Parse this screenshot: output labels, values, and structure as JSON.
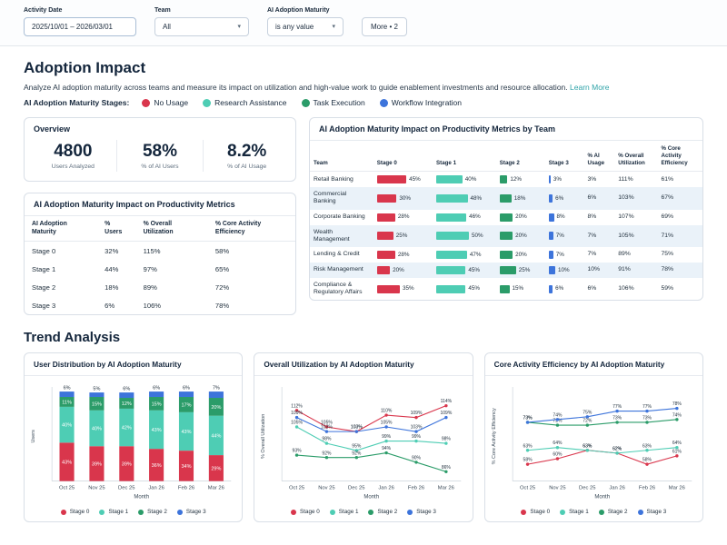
{
  "stage_colors": {
    "stage0": "#d9364c",
    "stage1": "#4ecdb4",
    "stage2": "#2b9c69",
    "stage3": "#3d74db"
  },
  "filters": {
    "activity_date": {
      "label": "Activity Date",
      "value": "2025/10/01 – 2026/03/01"
    },
    "team": {
      "label": "Team",
      "value": "All"
    },
    "maturity": {
      "label": "AI Adoption Maturity",
      "value": "is any value"
    },
    "more": {
      "label": "More • 2"
    }
  },
  "adoption_impact": {
    "title": "Adoption Impact",
    "description": "Analyze AI adoption maturity across teams and measure its impact on utilization and high-value work to guide enablement investments and resource allocation.",
    "learn_more": "Learn More",
    "legend_title": "AI Adoption Maturity Stages:",
    "legend": [
      {
        "label": "No Usage",
        "color": "#d9364c"
      },
      {
        "label": "Research Assistance",
        "color": "#4ecdb4"
      },
      {
        "label": "Task Execution",
        "color": "#2b9c69"
      },
      {
        "label": "Workflow Integration",
        "color": "#3d74db"
      }
    ]
  },
  "overview": {
    "title": "Overview",
    "stats": [
      {
        "value": "4800",
        "label": "Users Analyzed"
      },
      {
        "value": "58%",
        "label": "% of AI Users"
      },
      {
        "value": "8.2%",
        "label": "% of AI Usage"
      }
    ]
  },
  "metrics_table": {
    "title": "AI Adoption Maturity Impact on Productivity Metrics",
    "columns": [
      "AI Adoption Maturity",
      "% Users",
      "% Overall Utilization",
      "% Core Activity Efficiency"
    ],
    "rows": [
      [
        "Stage 0",
        "32%",
        "115%",
        "58%"
      ],
      [
        "Stage 1",
        "44%",
        "97%",
        "65%"
      ],
      [
        "Stage 2",
        "18%",
        "89%",
        "72%"
      ],
      [
        "Stage 3",
        "6%",
        "106%",
        "78%"
      ]
    ]
  },
  "team_table": {
    "title": "AI Adoption Maturity Impact on Productivity Metrics by Team",
    "columns": [
      "Team",
      "Stage 0",
      "Stage 1",
      "Stage 2",
      "Stage 3",
      "% AI Usage",
      "% Overall Utilization",
      "% Core Activity Efficiency"
    ],
    "rows": [
      {
        "team": "Retail Banking",
        "stages": [
          45,
          40,
          12,
          3
        ],
        "ai_usage": "3%",
        "utilization": "111%",
        "efficiency": "61%"
      },
      {
        "team": "Commercial Banking",
        "stages": [
          30,
          48,
          18,
          6
        ],
        "ai_usage": "6%",
        "utilization": "103%",
        "efficiency": "67%"
      },
      {
        "team": "Corporate Banking",
        "stages": [
          28,
          46,
          20,
          8
        ],
        "ai_usage": "8%",
        "utilization": "107%",
        "efficiency": "69%"
      },
      {
        "team": "Wealth Management",
        "stages": [
          25,
          50,
          20,
          7
        ],
        "ai_usage": "7%",
        "utilization": "105%",
        "efficiency": "71%"
      },
      {
        "team": "Lending & Credit",
        "stages": [
          28,
          47,
          20,
          7
        ],
        "ai_usage": "7%",
        "utilization": "89%",
        "efficiency": "75%"
      },
      {
        "team": "Risk Management",
        "stages": [
          20,
          45,
          25,
          10
        ],
        "ai_usage": "10%",
        "utilization": "91%",
        "efficiency": "78%"
      },
      {
        "team": "Compliance & Regulatory Affairs",
        "stages": [
          35,
          45,
          15,
          6
        ],
        "ai_usage": "6%",
        "utilization": "106%",
        "efficiency": "59%"
      }
    ]
  },
  "trend": {
    "title": "Trend Analysis"
  },
  "chart_data": [
    {
      "type": "bar",
      "stacked": true,
      "title": "User Distribution by AI Adoption Maturity",
      "xlabel": "Month",
      "ylabel": "Users",
      "categories": [
        "Oct 25",
        "Nov 25",
        "Dec 25",
        "Jan 26",
        "Feb 26",
        "Mar 26"
      ],
      "ylim": [
        0,
        100
      ],
      "series": [
        {
          "name": "Stage 0",
          "color": "#d9364c",
          "values": [
            43,
            39,
            39,
            36,
            34,
            29
          ]
        },
        {
          "name": "Stage 1",
          "color": "#4ecdb4",
          "values": [
            40,
            40,
            42,
            43,
            43,
            44
          ]
        },
        {
          "name": "Stage 2",
          "color": "#2b9c69",
          "values": [
            11,
            15,
            12,
            15,
            17,
            20
          ]
        },
        {
          "name": "Stage 3",
          "color": "#3d74db",
          "values": [
            6,
            5,
            6,
            6,
            6,
            7
          ]
        }
      ]
    },
    {
      "type": "line",
      "title": "Overall Utilization by AI Adoption Maturity",
      "xlabel": "Month",
      "ylabel": "% Overall Utilization",
      "categories": [
        "Oct 25",
        "Nov 25",
        "Dec 25",
        "Jan 26",
        "Feb 26",
        "Mar 26"
      ],
      "ylim": [
        82,
        120
      ],
      "series": [
        {
          "name": "Stage 0",
          "color": "#d9364c",
          "values": [
            112,
            105,
            103,
            110,
            109,
            114
          ]
        },
        {
          "name": "Stage 1",
          "color": "#4ecdb4",
          "values": [
            105,
            98,
            95,
            99,
            99,
            98
          ]
        },
        {
          "name": "Stage 2",
          "color": "#2b9c69",
          "values": [
            93,
            92,
            92,
            94,
            90,
            86
          ]
        },
        {
          "name": "Stage 3",
          "color": "#3d74db",
          "values": [
            109,
            103,
            103,
            105,
            103,
            109
          ]
        }
      ]
    },
    {
      "type": "line",
      "title": "Core Activity Efficiency by AI Adoption Maturity",
      "xlabel": "Month",
      "ylabel": "% Core Activity Efficiency",
      "categories": [
        "Oct 25",
        "Nov 25",
        "Dec 25",
        "Jan 26",
        "Feb 26",
        "Mar 26"
      ],
      "ylim": [
        52,
        84
      ],
      "series": [
        {
          "name": "Stage 0",
          "color": "#d9364c",
          "values": [
            58,
            60,
            63,
            62,
            58,
            61
          ]
        },
        {
          "name": "Stage 1",
          "color": "#4ecdb4",
          "values": [
            63,
            64,
            63,
            62,
            63,
            64
          ]
        },
        {
          "name": "Stage 2",
          "color": "#2b9c69",
          "values": [
            73,
            72,
            72,
            73,
            73,
            74
          ]
        },
        {
          "name": "Stage 3",
          "color": "#3d74db",
          "values": [
            73,
            74,
            75,
            77,
            77,
            78
          ]
        }
      ]
    }
  ]
}
